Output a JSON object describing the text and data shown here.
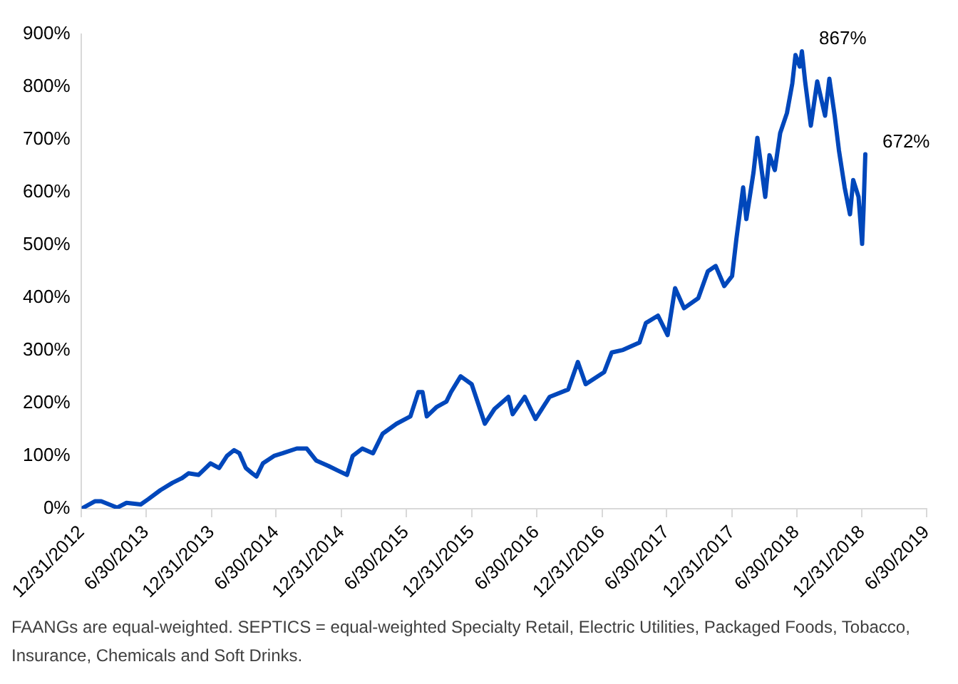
{
  "chart_data": {
    "type": "line",
    "annotations": [
      {
        "text": "867%",
        "x": "2018-07-15",
        "y": 867
      },
      {
        "text": "672%",
        "x": "2019-01-09",
        "y": 672
      },
      "FAANGs are equal-weighted. SEPTICS = equal-weighted Specialty Retail, Electric Utilities, Packaged Foods, Tobacco, Insurance, Chemicals and Soft Drinks."
    ],
    "x": [
      "2012-12-31",
      "2013-02-06",
      "2013-02-24",
      "2013-04-10",
      "2013-05-06",
      "2013-06-15",
      "2013-07-06",
      "2013-08-09",
      "2013-09-12",
      "2013-10-09",
      "2013-10-27",
      "2013-11-24",
      "2013-12-28",
      "2014-01-21",
      "2014-02-12",
      "2014-03-04",
      "2014-03-19",
      "2014-04-06",
      "2014-04-24",
      "2014-05-06",
      "2014-05-24",
      "2014-06-24",
      "2014-07-18",
      "2014-08-27",
      "2014-09-24",
      "2014-10-21",
      "2014-11-24",
      "2014-12-21",
      "2015-01-15",
      "2015-01-31",
      "2015-02-27",
      "2015-03-29",
      "2015-04-25",
      "2015-06-03",
      "2015-07-12",
      "2015-08-03",
      "2015-08-15",
      "2015-08-27",
      "2015-09-24",
      "2015-10-21",
      "2015-11-03",
      "2015-11-30",
      "2015-12-31",
      "2016-02-06",
      "2016-03-04",
      "2016-04-12",
      "2016-04-24",
      "2016-05-28",
      "2016-06-27",
      "2016-08-06",
      "2016-09-27",
      "2016-10-24",
      "2016-11-15",
      "2017-01-06",
      "2017-01-27",
      "2017-02-28",
      "2017-04-15",
      "2017-05-03",
      "2017-06-06",
      "2017-07-03",
      "2017-07-24",
      "2017-08-18",
      "2017-09-27",
      "2017-10-24",
      "2017-11-15",
      "2017-12-09",
      "2017-12-31",
      "2018-01-12",
      "2018-01-31",
      "2018-02-09",
      "2018-03-01",
      "2018-03-12",
      "2018-04-03",
      "2018-04-15",
      "2018-04-30",
      "2018-05-15",
      "2018-06-03",
      "2018-06-18",
      "2018-06-27",
      "2018-07-09",
      "2018-07-15",
      "2018-07-24",
      "2018-08-09",
      "2018-08-27",
      "2018-09-18",
      "2018-09-30",
      "2018-10-15",
      "2018-10-27",
      "2018-11-12",
      "2018-11-27",
      "2018-12-06",
      "2018-12-21",
      "2018-12-31",
      "2019-01-04",
      "2019-01-09"
    ],
    "series": [
      {
        "color": "#0047bb",
        "values": [
          0,
          14,
          14,
          2,
          11,
          8,
          18,
          35,
          49,
          58,
          67,
          64,
          86,
          77,
          100,
          111,
          105,
          77,
          67,
          61,
          86,
          100,
          105,
          114,
          114,
          91,
          81,
          72,
          64,
          100,
          114,
          105,
          142,
          161,
          175,
          221,
          221,
          175,
          193,
          203,
          221,
          251,
          236,
          161,
          189,
          212,
          179,
          212,
          170,
          212,
          226,
          278,
          236,
          259,
          296,
          301,
          315,
          352,
          366,
          329,
          418,
          380,
          399,
          450,
          460,
          422,
          441,
          511,
          609,
          549,
          637,
          703,
          591,
          670,
          642,
          712,
          750,
          806,
          860,
          838,
          867,
          810,
          726,
          810,
          745,
          815,
          745,
          679,
          609,
          558,
          623,
          591,
          502,
          567,
          672
        ]
      }
    ],
    "xlim": [
      "2012-12-31",
      "2019-06-30"
    ],
    "xticks": [
      {
        "value": "2012-12-31",
        "label": "12/31/2012"
      },
      {
        "value": "2013-06-30",
        "label": "6/30/2013"
      },
      {
        "value": "2013-12-31",
        "label": "12/31/2013"
      },
      {
        "value": "2014-06-30",
        "label": "6/30/2014"
      },
      {
        "value": "2014-12-31",
        "label": "12/31/2014"
      },
      {
        "value": "2015-06-30",
        "label": "6/30/2015"
      },
      {
        "value": "2015-12-31",
        "label": "12/31/2015"
      },
      {
        "value": "2016-06-30",
        "label": "6/30/2016"
      },
      {
        "value": "2016-12-31",
        "label": "12/31/2016"
      },
      {
        "value": "2017-06-30",
        "label": "6/30/2017"
      },
      {
        "value": "2017-12-31",
        "label": "12/31/2017"
      },
      {
        "value": "2018-06-30",
        "label": "6/30/2018"
      },
      {
        "value": "2018-12-31",
        "label": "12/31/2018"
      },
      {
        "value": "2019-06-30",
        "label": "6/30/2019"
      }
    ],
    "ylim": [
      0,
      900
    ],
    "yticks": [
      {
        "value": 0,
        "label": "0%"
      },
      {
        "value": 100,
        "label": "100%"
      },
      {
        "value": 200,
        "label": "200%"
      },
      {
        "value": 300,
        "label": "300%"
      },
      {
        "value": 400,
        "label": "400%"
      },
      {
        "value": 500,
        "label": "500%"
      },
      {
        "value": 600,
        "label": "600%"
      },
      {
        "value": 700,
        "label": "700%"
      },
      {
        "value": 800,
        "label": "800%"
      },
      {
        "value": 900,
        "label": "900%"
      }
    ],
    "grid": false,
    "legend": false,
    "marker": "none",
    "line_style": "solid"
  }
}
